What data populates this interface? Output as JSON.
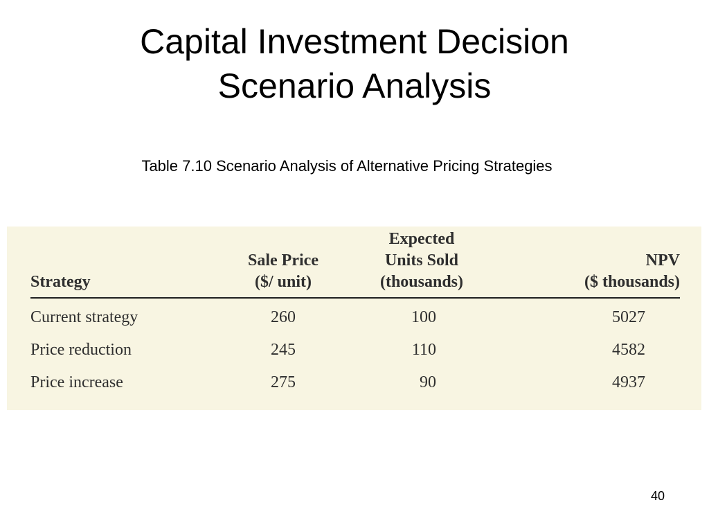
{
  "slide": {
    "title_line1": "Capital Investment Decision",
    "title_line2": "Scenario Analysis",
    "caption": "Table 7.10  Scenario Analysis of Alternative Pricing Strategies",
    "page_number": "40"
  },
  "table": {
    "headers": {
      "strategy": [
        "Strategy"
      ],
      "sale_price": [
        "Sale Price",
        "($/ unit)"
      ],
      "units_sold": [
        "Expected",
        "Units Sold",
        "(thousands)"
      ],
      "npv": [
        "NPV",
        "($ thousands)"
      ]
    },
    "rows": [
      {
        "strategy": "Current strategy",
        "sale_price": "260",
        "units_sold": "100",
        "npv": "5027"
      },
      {
        "strategy": "Price reduction",
        "sale_price": "245",
        "units_sold": "110",
        "npv": "4582"
      },
      {
        "strategy": "Price increase",
        "sale_price": "275",
        "units_sold": "90",
        "npv": "4937"
      }
    ]
  },
  "colors": {
    "panel_background": "#f8f5e2",
    "table_text": "#2f2f2f"
  }
}
